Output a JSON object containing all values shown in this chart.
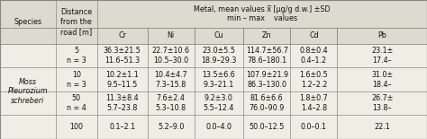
{
  "col_headers": [
    "Cr",
    "Ni",
    "Cu",
    "Zn",
    "Cd",
    "Pb"
  ],
  "rows": [
    {
      "dist": "5\nn = 3",
      "Cr": "36.3±21.5\n11.6–51.3",
      "Ni": "22.7±10.6\n10.5–30.0",
      "Cu": "23.0±5.5\n18.9–29.3",
      "Zn": "114.7±56.7\n78.6–180.1",
      "Cd": "0.8±0.4\n0.4–1.2",
      "Pb": "23.1±\n17.4–"
    },
    {
      "dist": "10\nn = 3",
      "Cr": "10.2±1.1\n9.5–11.5",
      "Ni": "10.4±4.7\n7.3–15.8",
      "Cu": "13.5±6.6\n9.3–21.1",
      "Zn": "107.9±21.9\n86.3–130.0",
      "Cd": "1.6±0.5\n1.2–2.2",
      "Pb": "31.0±\n18.4–"
    },
    {
      "dist": "50\nn = 4",
      "Cr": "11.3±8.4\n5.7–23.8",
      "Ni": "7.6±2.4\n5.3–10.8",
      "Cu": "9.2±3.0\n5.5–12.4",
      "Zn": "81.6±6.6\n76.0–90.9",
      "Cd": "1.8±0.7\n1.4–2.8",
      "Pb": "26.7±\n13.8–"
    },
    {
      "dist": "100",
      "Cr": "0.1–2.1",
      "Ni": "5.2–9.0",
      "Cu": "0.0–4.0",
      "Zn": "50.0–12.5",
      "Cd": "0.0–0.1",
      "Pb": "22.1"
    }
  ],
  "metal_header_line1": "Metal, mean values x̅ [μg/g d.w.] ±SD",
  "metal_header_line2": "min – max    values",
  "species_text": "Moss\nPleurozium\nschreberi",
  "bg_color": "#f0ede4",
  "header_bg": "#dddbd0",
  "line_color": "#888888",
  "text_color": "#111111",
  "font_size": 5.8
}
